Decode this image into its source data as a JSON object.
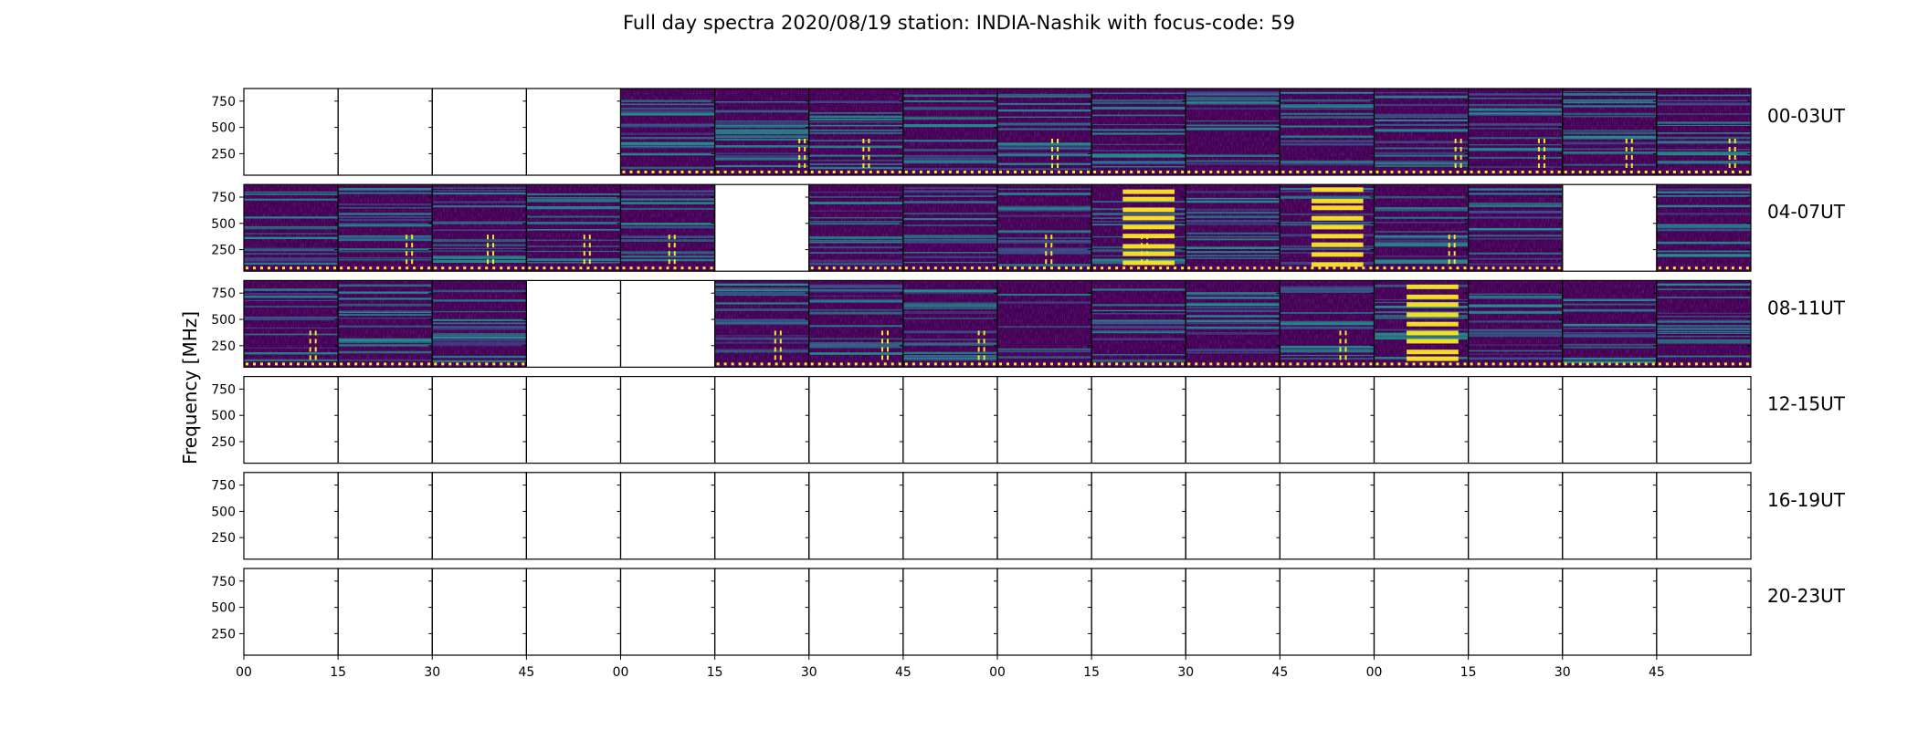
{
  "chart_data": {
    "type": "heatmap",
    "title": "Full day spectra 2020/08/19 station: INDIA-Nashik with focus-code: 59",
    "ylabel": "Frequency [MHz]",
    "ylim": [
      45,
      870
    ],
    "yticks": [
      "250",
      "500",
      "750"
    ],
    "xticks": [
      "00",
      "15",
      "30",
      "45",
      "00",
      "15",
      "30",
      "45",
      "00",
      "15",
      "30",
      "45",
      "00",
      "15",
      "30",
      "45"
    ],
    "colormap": "viridis",
    "colors": {
      "low": "#440154",
      "mid": "#21918c",
      "high": "#fde725"
    },
    "rows": [
      {
        "label": "00-03UT",
        "panels": [
          0,
          0,
          0,
          0,
          2,
          2,
          2,
          2,
          2,
          2,
          2,
          2,
          2,
          2,
          2,
          2
        ]
      },
      {
        "label": "04-07UT",
        "panels": [
          2,
          2,
          2,
          2,
          2,
          0,
          2,
          2,
          2,
          3,
          2,
          3,
          2,
          2,
          0,
          2
        ]
      },
      {
        "label": "08-11UT",
        "panels": [
          2,
          2,
          2,
          0,
          0,
          2,
          2,
          2,
          1,
          2,
          2,
          2,
          3,
          2,
          2,
          2
        ]
      },
      {
        "label": "12-15UT",
        "panels": [
          0,
          0,
          0,
          0,
          0,
          0,
          0,
          0,
          0,
          0,
          0,
          0,
          0,
          0,
          0,
          0
        ]
      },
      {
        "label": "16-19UT",
        "panels": [
          0,
          0,
          0,
          0,
          0,
          0,
          0,
          0,
          0,
          0,
          0,
          0,
          0,
          0,
          0,
          0
        ]
      },
      {
        "label": "20-23UT",
        "panels": [
          0,
          0,
          0,
          0,
          0,
          0,
          0,
          0,
          0,
          0,
          0,
          0,
          0,
          0,
          0,
          0
        ]
      }
    ]
  }
}
